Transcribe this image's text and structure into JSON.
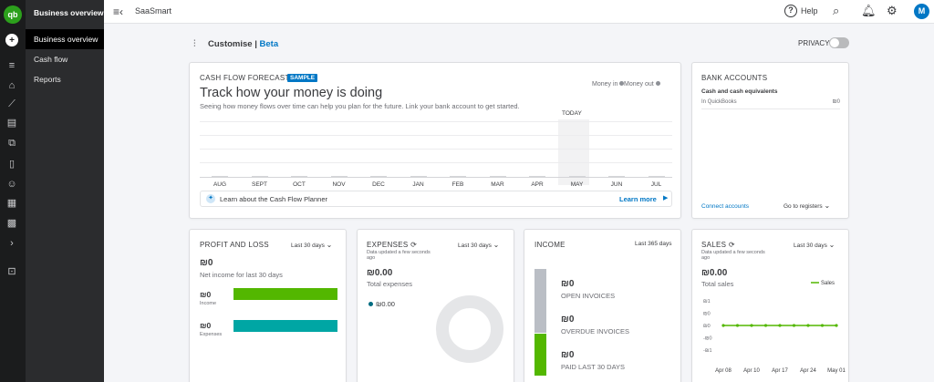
{
  "sidebar": {
    "logo": "qb",
    "title": "Business overview",
    "items": [
      {
        "label": "Business overview",
        "active": true
      },
      {
        "label": "Cash flow",
        "active": false
      },
      {
        "label": "Reports",
        "active": false
      }
    ]
  },
  "topbar": {
    "company": "SaaSmart",
    "help_label": "Help",
    "avatar_letter": "M"
  },
  "customise": {
    "label": "Customise",
    "separator": " | ",
    "beta": "Beta",
    "privacy_label": "PRIVACY"
  },
  "cashflow": {
    "title": "CASH FLOW FORECAST",
    "badge": "SAMPLE",
    "headline": "Track how your money is doing",
    "subtitle": "Seeing how money flows over time can help you plan for the future. Link your bank account to get started.",
    "legend_in": "Money in",
    "legend_out": "Money out",
    "today_label": "TODAY",
    "months": [
      "AUG",
      "SEPT",
      "OCT",
      "NOV",
      "DEC",
      "JAN",
      "FEB",
      "MAR",
      "APR",
      "MAY",
      "JUN",
      "JUL"
    ],
    "planner_text": "Learn about the Cash Flow Planner",
    "planner_link": "Learn more"
  },
  "bank": {
    "title": "BANK ACCOUNTS",
    "subtitle": "Cash and cash equivalents",
    "row_label": "In QuickBooks",
    "row_value": "₪0",
    "connect_link": "Connect accounts",
    "registers_link": "Go to registers"
  },
  "pnl": {
    "title": "PROFIT AND LOSS",
    "period": "Last 30 days",
    "net_value": "₪0",
    "net_label": "Net income for last 30 days",
    "income_value": "₪0",
    "income_label": "Income",
    "income_color": "#53b700",
    "expenses_value": "₪0",
    "expenses_label": "Expenses",
    "expenses_color": "#00a6a4"
  },
  "expenses": {
    "title": "EXPENSES",
    "updated": "Data updated a few seconds ago",
    "period": "Last 30 days",
    "total_value": "₪0.00",
    "total_label": "Total expenses",
    "legend_value": "₪0.00"
  },
  "income": {
    "title": "INCOME",
    "period": "Last 365 days",
    "open_value": "₪0",
    "open_label": "OPEN INVOICES",
    "overdue_value": "₪0",
    "overdue_label": "OVERDUE INVOICES",
    "paid_value": "₪0",
    "paid_label": "PAID LAST 30 DAYS"
  },
  "sales": {
    "title": "SALES",
    "updated": "Data updated a few seconds ago",
    "period": "Last 30 days",
    "total_value": "₪0.00",
    "total_label": "Total sales",
    "legend": "Sales",
    "line_color": "#53b700"
  },
  "chart_data": {
    "type": "line",
    "categories": [
      "Apr 08",
      "Apr 10",
      "Apr 17",
      "Apr 24",
      "May 01"
    ],
    "x": [
      "Apr 08",
      "",
      "Apr 10",
      "",
      "Apr 17",
      "",
      "Apr 24",
      "",
      "May 01"
    ],
    "series": [
      {
        "name": "Sales",
        "values": [
          0,
          0,
          0,
          0,
          0,
          0,
          0,
          0,
          0
        ]
      }
    ],
    "ytick_labels": [
      "₪1",
      "₪0",
      "₪0",
      "-₪0",
      "-₪1"
    ],
    "ylim": [
      -1,
      1
    ],
    "title": "",
    "xlabel": "",
    "ylabel": "",
    "legend_position": "top-right"
  }
}
